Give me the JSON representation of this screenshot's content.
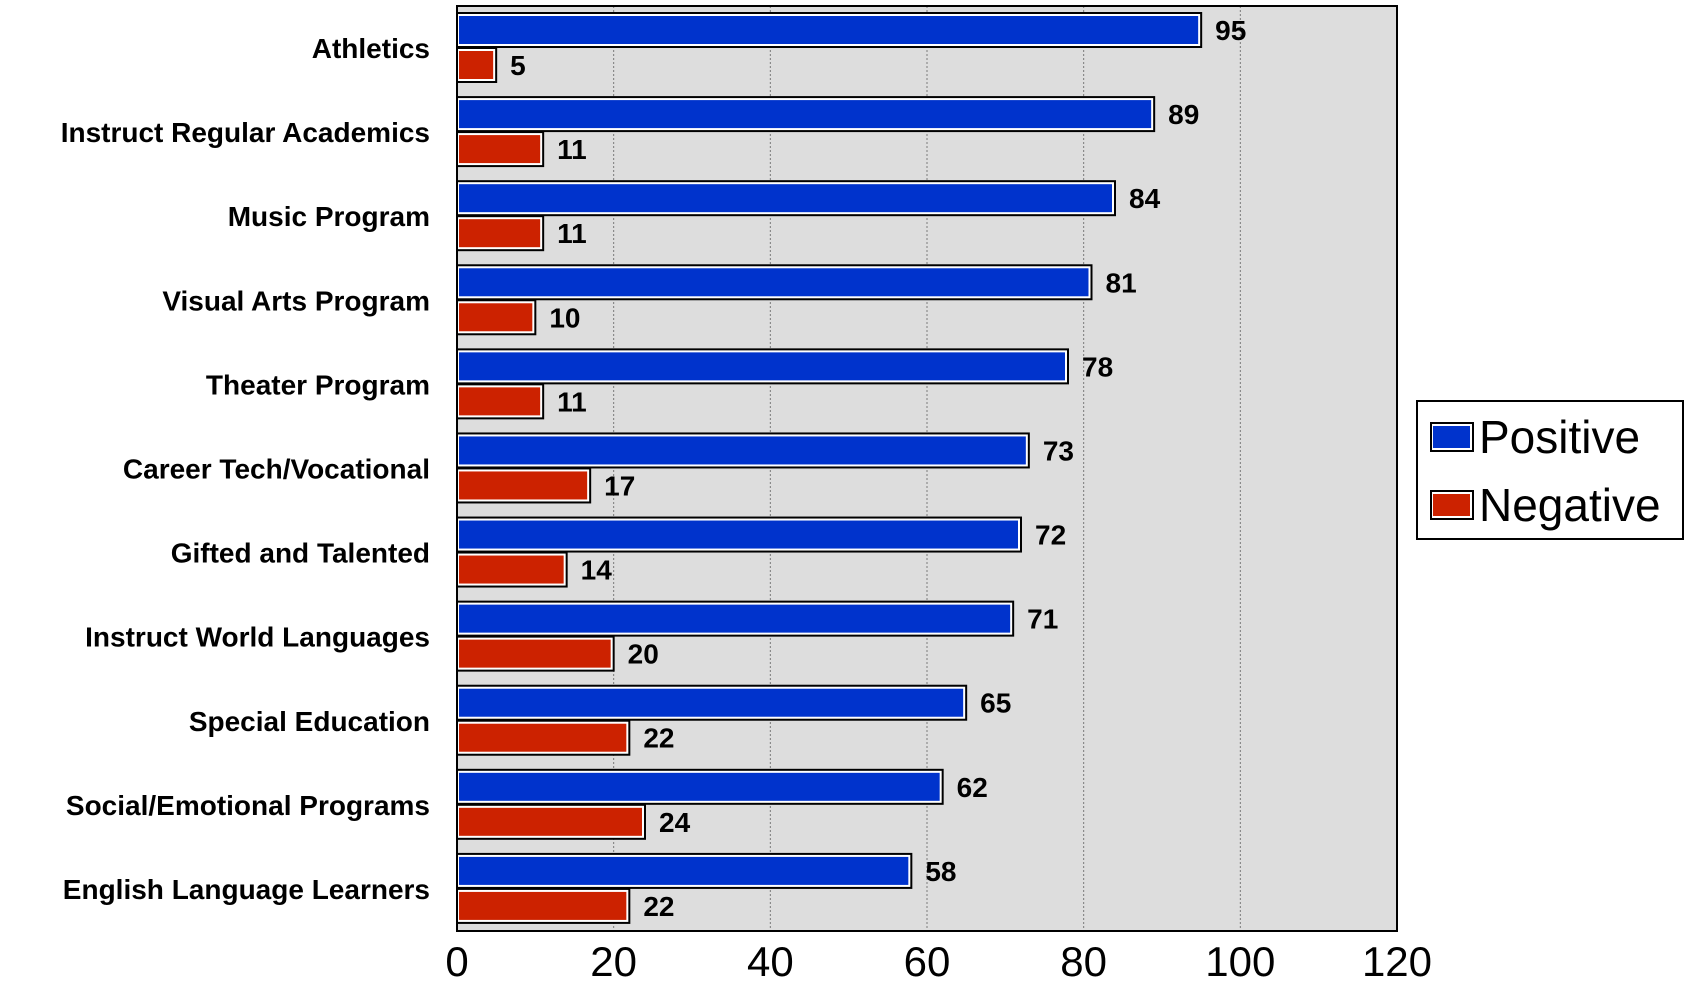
{
  "chart_data": {
    "type": "bar",
    "orientation": "horizontal",
    "categories": [
      "Athletics",
      "Instruct Regular Academics",
      "Music Program",
      "Visual Arts Program",
      "Theater Program",
      "Career Tech/Vocational",
      "Gifted and Talented",
      "Instruct World Languages",
      "Special Education",
      "Social/Emotional Programs",
      "English Language Learners"
    ],
    "series": [
      {
        "name": "Positive",
        "color": "#0033cc",
        "values": [
          95,
          89,
          84,
          81,
          78,
          73,
          72,
          71,
          65,
          62,
          58
        ]
      },
      {
        "name": "Negative",
        "color": "#cc2200",
        "values": [
          5,
          11,
          11,
          10,
          11,
          17,
          14,
          20,
          22,
          24,
          22
        ]
      }
    ],
    "xlim": [
      0,
      120
    ],
    "xticks": [
      "0",
      "20",
      "40",
      "60",
      "80",
      "100",
      "120"
    ],
    "xtick_values": [
      0,
      20,
      40,
      60,
      80,
      100,
      120
    ],
    "grid": true,
    "plot_background": "#dddddd",
    "legend_position": "right",
    "title": "",
    "xlabel": "",
    "ylabel": ""
  }
}
